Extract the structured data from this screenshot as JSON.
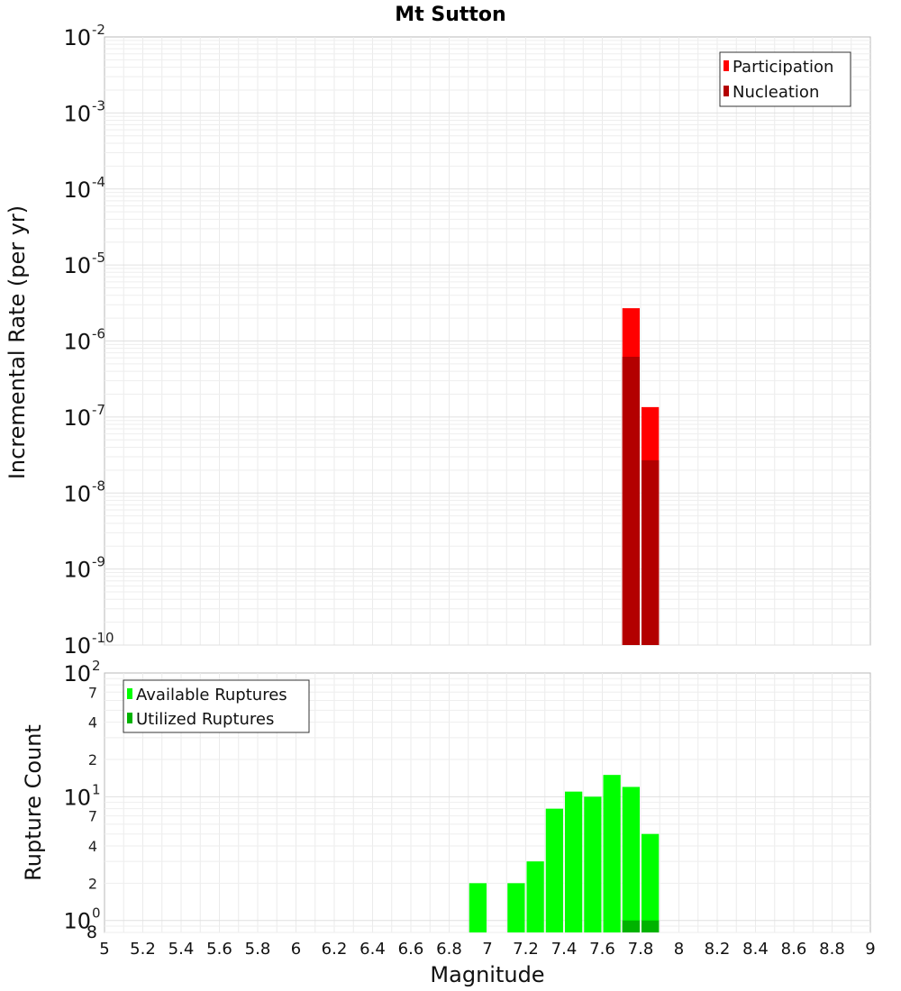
{
  "chart_data": [
    {
      "type": "bar",
      "title": "Mt Sutton",
      "ylabel": "Incremental Rate (per yr)",
      "yscale": "log",
      "ylim": [
        1e-10,
        0.01
      ],
      "xlim": [
        5,
        9
      ],
      "grid": true,
      "legend_position": "top-right",
      "y_ticks": [
        {
          "base": "10",
          "exp": "-10",
          "value": 1e-10
        },
        {
          "base": "10",
          "exp": "-9",
          "value": 1e-09
        },
        {
          "base": "10",
          "exp": "-8",
          "value": 1e-08
        },
        {
          "base": "10",
          "exp": "-7",
          "value": 1e-07
        },
        {
          "base": "10",
          "exp": "-6",
          "value": 1e-06
        },
        {
          "base": "10",
          "exp": "-5",
          "value": 1e-05
        },
        {
          "base": "10",
          "exp": "-4",
          "value": 0.0001
        },
        {
          "base": "10",
          "exp": "-3",
          "value": 0.001
        },
        {
          "base": "10",
          "exp": "-2",
          "value": 0.01
        }
      ],
      "series": [
        {
          "name": "Participation",
          "color": "#ff0000",
          "x": [
            7.75,
            7.85
          ],
          "values": [
            2.7e-06,
            1.35e-07
          ]
        },
        {
          "name": "Nucleation",
          "color": "#b30000",
          "x": [
            7.75,
            7.85
          ],
          "values": [
            6.2e-07,
            2.7e-08
          ]
        }
      ]
    },
    {
      "type": "bar",
      "ylabel": "Rupture Count",
      "xlabel": "Magnitude",
      "yscale": "log",
      "ylim": [
        0.8,
        100
      ],
      "xlim": [
        5,
        9
      ],
      "grid": true,
      "legend_position": "top-left",
      "x_ticks": [
        "5",
        "5.2",
        "5.4",
        "5.6",
        "5.8",
        "6",
        "6.2",
        "6.4",
        "6.6",
        "6.8",
        "7",
        "7.2",
        "7.4",
        "7.6",
        "7.8",
        "8",
        "8.2",
        "8.4",
        "8.6",
        "8.8",
        "9"
      ],
      "y_major_ticks": [
        {
          "base": "10",
          "exp": "0",
          "value": 1
        },
        {
          "base": "10",
          "exp": "1",
          "value": 10
        },
        {
          "base": "10",
          "exp": "2",
          "value": 100
        }
      ],
      "y_minor_ticks": [
        {
          "label": "8",
          "value": 0.8
        },
        {
          "label": "2",
          "value": 2
        },
        {
          "label": "4",
          "value": 4
        },
        {
          "label": "7",
          "value": 7
        },
        {
          "label": "2",
          "value": 20
        },
        {
          "label": "4",
          "value": 40
        },
        {
          "label": "7",
          "value": 70
        }
      ],
      "series": [
        {
          "name": "Available Ruptures",
          "color": "#00ff00",
          "x": [
            6.95,
            7.15,
            7.25,
            7.35,
            7.45,
            7.55,
            7.65,
            7.75,
            7.85
          ],
          "values": [
            2,
            2,
            3,
            8,
            11,
            10,
            15,
            12,
            5
          ]
        },
        {
          "name": "Utilized Ruptures",
          "color": "#00b300",
          "x": [
            7.75,
            7.85
          ],
          "values": [
            1,
            1
          ]
        }
      ]
    }
  ]
}
